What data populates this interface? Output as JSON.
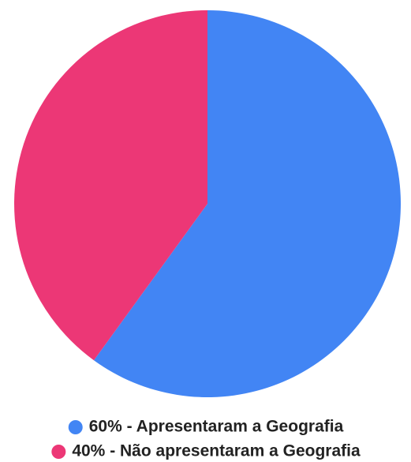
{
  "chart_data": {
    "type": "pie",
    "categories": [
      "60% - Apresentaram a Geografia",
      "40% - Não apresentaram a Geografia"
    ],
    "values": [
      60,
      40
    ],
    "colors": [
      "#4285f4",
      "#ec3776"
    ],
    "legend": "bottom"
  }
}
